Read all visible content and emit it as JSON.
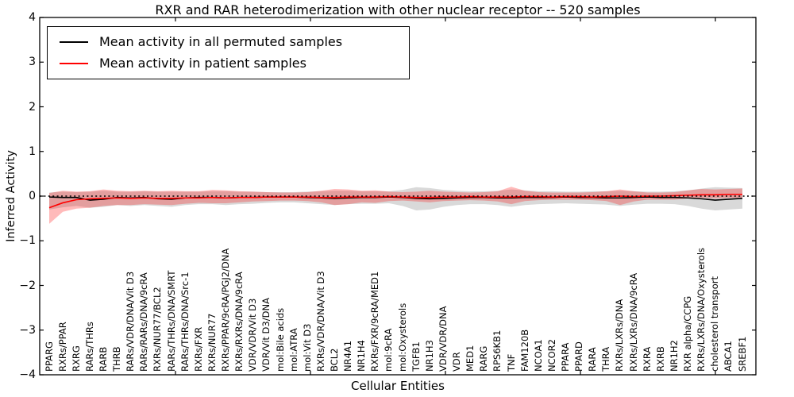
{
  "chart_data": {
    "type": "line",
    "title": "RXR and RAR heterodimerization with other nuclear receptor -- 520 samples",
    "xlabel": "Cellular Entities",
    "ylabel": "Inferred Activity",
    "ylim": [
      -4,
      4
    ],
    "ytick_values": [
      4,
      3,
      2,
      1,
      0,
      -1,
      -2,
      -3,
      -4
    ],
    "ytick_labels": [
      "4",
      "3",
      "2",
      "1",
      "0",
      "−1",
      "−2",
      "−3",
      "−4"
    ],
    "grid": false,
    "legend_position": "upper left",
    "zero_line": true,
    "categories": [
      "PPARG",
      "RXRs/PPAR",
      "RXRG",
      "RARs/THRs",
      "RARB",
      "THRB",
      "RARs/VDR/DNA/Vit D3",
      "RARs/RARs/DNA/9cRA",
      "RXRs/NUR77/BCL2",
      "RARs/THRs/DNA/SMRT",
      "RARs/THRs/DNA/Src-1",
      "RXRs/FXR",
      "RXRs/NUR77",
      "RXRs/PPAR/9cRA/PGJ2/DNA",
      "RXRs/RXRs/DNA/9cRA",
      "VDR/VDR/Vit D3",
      "VDR/Vit D3/DNA",
      "mol:Bile acids",
      "mol:ATRA",
      "mol:Vit D3",
      "RXRs/VDR/DNA/Vit D3",
      "BCL2",
      "NR4A1",
      "NR1H4",
      "RXRs/FXR/9cRA/MED1",
      "mol:9cRA",
      "mol:Oxysterols",
      "TGFB1",
      "NR1H3",
      "VDR/VDR/DNA",
      "VDR",
      "MED1",
      "RARG",
      "RPS6KB1",
      "TNF",
      "FAM120B",
      "NCOA1",
      "NCOR2",
      "PPARA",
      "PPARD",
      "RARA",
      "THRA",
      "RXRs/LXRs/DNA",
      "RXRs/LXRs/DNA/9cRA",
      "RXRA",
      "RXRB",
      "NR1H2",
      "RXR alpha/CCPG",
      "RXRs/LXRs/DNA/Oxysterols",
      "cholesterol transport",
      "ABCA1",
      "SREBF1"
    ],
    "series": [
      {
        "name": "Mean activity in all permuted samples",
        "color": "#000000",
        "band_color": "#808080",
        "band_opacity": 0.3,
        "values": [
          -0.02,
          -0.03,
          -0.03,
          -0.09,
          -0.07,
          -0.03,
          -0.04,
          -0.03,
          -0.06,
          -0.07,
          -0.04,
          -0.03,
          -0.03,
          -0.04,
          -0.03,
          -0.03,
          -0.02,
          -0.02,
          -0.02,
          -0.03,
          -0.04,
          -0.05,
          -0.04,
          -0.03,
          -0.03,
          -0.02,
          -0.03,
          -0.05,
          -0.06,
          -0.05,
          -0.04,
          -0.03,
          -0.03,
          -0.04,
          -0.04,
          -0.03,
          -0.03,
          -0.03,
          -0.02,
          -0.03,
          -0.03,
          -0.04,
          -0.04,
          -0.03,
          -0.02,
          -0.03,
          -0.03,
          -0.04,
          -0.06,
          -0.09,
          -0.07,
          -0.05
        ],
        "band_upper": [
          0.08,
          0.1,
          0.09,
          0.1,
          0.12,
          0.1,
          0.1,
          0.11,
          0.1,
          0.1,
          0.1,
          0.1,
          0.11,
          0.11,
          0.1,
          0.1,
          0.09,
          0.09,
          0.09,
          0.1,
          0.11,
          0.12,
          0.12,
          0.11,
          0.11,
          0.11,
          0.14,
          0.2,
          0.18,
          0.14,
          0.12,
          0.11,
          0.11,
          0.12,
          0.15,
          0.13,
          0.11,
          0.11,
          0.1,
          0.1,
          0.11,
          0.11,
          0.12,
          0.11,
          0.1,
          0.1,
          0.11,
          0.13,
          0.17,
          0.2,
          0.19,
          0.18
        ],
        "band_lower": [
          -0.3,
          -0.25,
          -0.22,
          -0.26,
          -0.24,
          -0.2,
          -0.22,
          -0.2,
          -0.22,
          -0.24,
          -0.2,
          -0.18,
          -0.18,
          -0.2,
          -0.18,
          -0.17,
          -0.15,
          -0.14,
          -0.14,
          -0.16,
          -0.18,
          -0.2,
          -0.18,
          -0.17,
          -0.17,
          -0.16,
          -0.22,
          -0.32,
          -0.3,
          -0.24,
          -0.2,
          -0.18,
          -0.18,
          -0.2,
          -0.24,
          -0.2,
          -0.18,
          -0.17,
          -0.16,
          -0.17,
          -0.18,
          -0.19,
          -0.22,
          -0.19,
          -0.17,
          -0.17,
          -0.18,
          -0.22,
          -0.28,
          -0.32,
          -0.3,
          -0.28
        ]
      },
      {
        "name": "Mean activity in patient samples",
        "color": "#ff0000",
        "band_color": "#ff0000",
        "band_opacity": 0.27,
        "values": [
          -0.26,
          -0.15,
          -0.08,
          -0.06,
          -0.05,
          -0.04,
          -0.05,
          -0.04,
          -0.05,
          -0.05,
          -0.04,
          -0.04,
          -0.03,
          -0.04,
          -0.03,
          -0.03,
          -0.02,
          -0.02,
          -0.02,
          -0.02,
          -0.03,
          -0.03,
          -0.02,
          -0.02,
          -0.02,
          -0.01,
          -0.02,
          -0.03,
          -0.03,
          -0.02,
          -0.02,
          -0.01,
          -0.02,
          -0.02,
          -0.02,
          -0.01,
          -0.01,
          -0.02,
          -0.01,
          -0.01,
          -0.02,
          -0.01,
          0.0,
          -0.01,
          0.0,
          0.0,
          0.01,
          0.02,
          0.03,
          0.03,
          0.04,
          0.04
        ],
        "band_upper": [
          0.07,
          0.12,
          0.1,
          0.11,
          0.15,
          0.12,
          0.11,
          0.12,
          0.11,
          0.12,
          0.11,
          0.11,
          0.14,
          0.13,
          0.11,
          0.1,
          0.09,
          0.08,
          0.08,
          0.09,
          0.12,
          0.16,
          0.15,
          0.12,
          0.13,
          0.1,
          0.09,
          0.1,
          0.12,
          0.1,
          0.09,
          0.08,
          0.09,
          0.11,
          0.21,
          0.12,
          0.09,
          0.08,
          0.08,
          0.08,
          0.09,
          0.11,
          0.15,
          0.11,
          0.08,
          0.08,
          0.09,
          0.13,
          0.16,
          0.15,
          0.16,
          0.17
        ],
        "band_lower": [
          -0.62,
          -0.35,
          -0.28,
          -0.26,
          -0.22,
          -0.2,
          -0.2,
          -0.18,
          -0.19,
          -0.2,
          -0.17,
          -0.15,
          -0.16,
          -0.16,
          -0.14,
          -0.12,
          -0.11,
          -0.1,
          -0.1,
          -0.11,
          -0.14,
          -0.2,
          -0.18,
          -0.14,
          -0.15,
          -0.11,
          -0.1,
          -0.12,
          -0.14,
          -0.11,
          -0.1,
          -0.09,
          -0.1,
          -0.12,
          -0.18,
          -0.11,
          -0.09,
          -0.08,
          -0.08,
          -0.08,
          -0.09,
          -0.11,
          -0.2,
          -0.12,
          -0.08,
          -0.08,
          -0.08,
          -0.05,
          -0.04,
          -0.05,
          -0.04,
          -0.04
        ]
      }
    ]
  }
}
